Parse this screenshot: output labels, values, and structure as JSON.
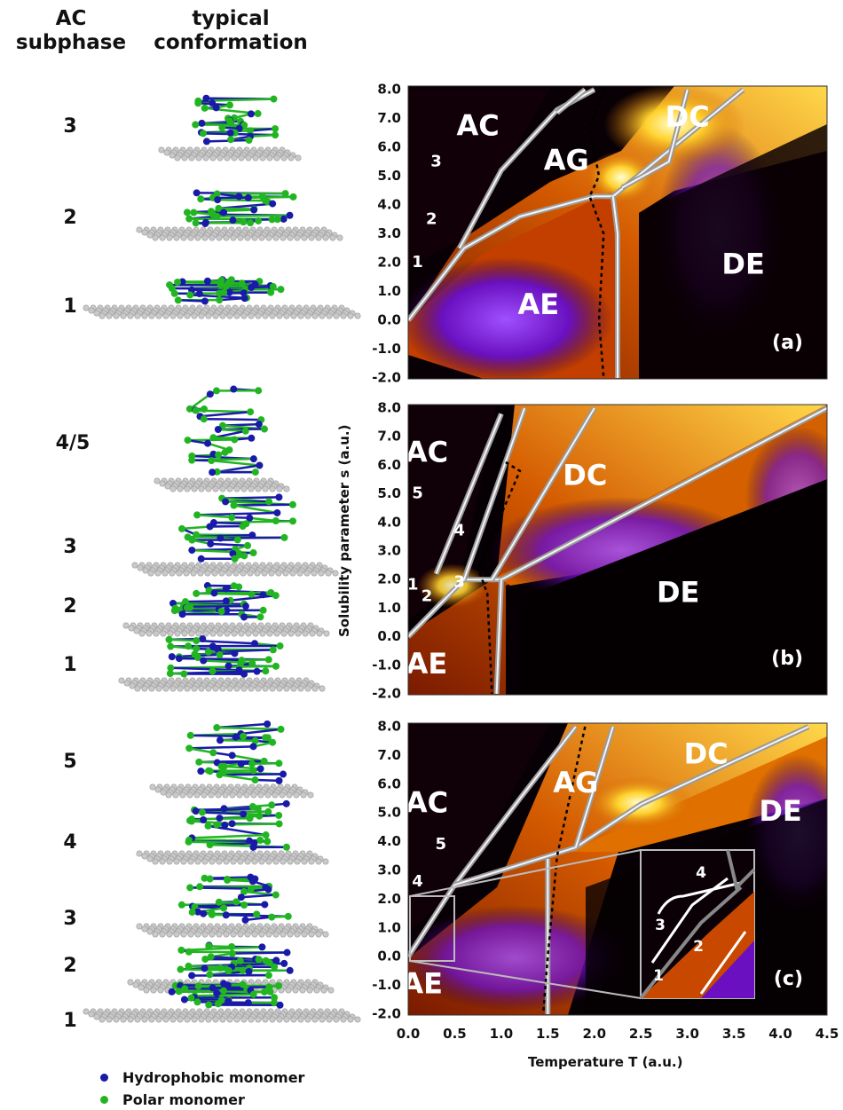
{
  "headers": {
    "left_title": [
      "AC",
      "subphase"
    ],
    "right_title": [
      "typical",
      "conformation"
    ]
  },
  "colors": {
    "hydrophobic": "#1a1aa8",
    "polar": "#22b522",
    "substrate": "#c9c9c9"
  },
  "panel_a": {
    "subphases": [
      "3",
      "2",
      "1"
    ]
  },
  "panel_b": {
    "subphases": [
      "4/5",
      "3",
      "2",
      "1"
    ]
  },
  "panel_c": {
    "subphases": [
      "5",
      "4",
      "3",
      "2",
      "1"
    ]
  },
  "legend": [
    {
      "label": "Hydrophobic monomer",
      "color": "#1a1aa8"
    },
    {
      "label": "Polar monomer",
      "color": "#22b522"
    }
  ],
  "chart_data": [
    {
      "type": "heatmap",
      "panel": "(a)",
      "xlim": [
        0.0,
        4.5
      ],
      "ylim": [
        -2.0,
        8.0
      ],
      "x_ticks": [
        "0.0",
        "0.5",
        "1.0",
        "1.5",
        "2.0",
        "2.5",
        "3.0",
        "3.5",
        "4.0",
        "4.5"
      ],
      "y_ticks": [
        "8.0",
        "7.0",
        "6.0",
        "5.0",
        "4.0",
        "3.0",
        "2.0",
        "1.0",
        "0.0",
        "-1.0",
        "-2.0"
      ],
      "regions": [
        {
          "label": "AC",
          "T": 0.75,
          "s": 6.7
        },
        {
          "label": "3",
          "T": 0.3,
          "s": 5.5
        },
        {
          "label": "2",
          "T": 0.25,
          "s": 3.5
        },
        {
          "label": "1",
          "T": 0.1,
          "s": 2.0
        },
        {
          "label": "AG",
          "T": 1.7,
          "s": 5.5
        },
        {
          "label": "DC",
          "T": 3.0,
          "s": 7.0
        },
        {
          "label": "DE",
          "T": 3.6,
          "s": 1.9
        },
        {
          "label": "AE",
          "T": 1.4,
          "s": 0.5
        }
      ],
      "boundaries": [
        [
          [
            0.0,
            0.0
          ],
          [
            0.6,
            2.5
          ],
          [
            1.2,
            3.6
          ],
          [
            2.0,
            4.3
          ],
          [
            2.2,
            4.3
          ],
          [
            3.6,
            8.0
          ]
        ],
        [
          [
            2.2,
            4.3
          ],
          [
            2.25,
            3.0
          ],
          [
            2.25,
            -2.0
          ]
        ],
        [
          [
            0.55,
            2.5
          ],
          [
            1.0,
            5.2
          ],
          [
            1.6,
            7.3
          ],
          [
            2.0,
            8.0
          ]
        ],
        [
          [
            1.6,
            7.2
          ],
          [
            1.9,
            8.0
          ]
        ],
        [
          [
            2.3,
            4.6
          ],
          [
            2.8,
            5.5
          ],
          [
            3.0,
            8.0
          ]
        ]
      ],
      "transition_line": [
        [
          2.1,
          8.0
        ],
        [
          1.95,
          6.7
        ],
        [
          2.05,
          5.0
        ],
        [
          1.95,
          4.3
        ],
        [
          2.1,
          3.0
        ],
        [
          2.05,
          0.0
        ],
        [
          2.1,
          -2.0
        ]
      ]
    },
    {
      "type": "heatmap",
      "panel": "(b)",
      "xlim": [
        0.0,
        4.5
      ],
      "ylim": [
        -2.0,
        8.0
      ],
      "x_ticks": [
        "0.0",
        "0.5",
        "1.0",
        "1.5",
        "2.0",
        "2.5",
        "3.0",
        "3.5",
        "4.0",
        "4.5"
      ],
      "y_ticks": [
        "8.0",
        "7.0",
        "6.0",
        "5.0",
        "4.0",
        "3.0",
        "2.0",
        "1.0",
        "0.0",
        "-1.0",
        "-2.0"
      ],
      "regions": [
        {
          "label": "AC",
          "T": 0.2,
          "s": 6.4
        },
        {
          "label": "5",
          "T": 0.1,
          "s": 5.0
        },
        {
          "label": "4",
          "T": 0.55,
          "s": 3.7
        },
        {
          "label": "1",
          "T": 0.05,
          "s": 1.8
        },
        {
          "label": "2",
          "T": 0.2,
          "s": 1.4
        },
        {
          "label": "3",
          "T": 0.55,
          "s": 1.9
        },
        {
          "label": "DC",
          "T": 1.9,
          "s": 5.6
        },
        {
          "label": "DE",
          "T": 2.9,
          "s": 1.5
        },
        {
          "label": "AE",
          "T": 0.2,
          "s": -1.0
        }
      ],
      "boundaries": [
        [
          [
            0.0,
            0.0
          ],
          [
            0.6,
            2.0
          ],
          [
            1.0,
            2.0
          ],
          [
            4.5,
            8.0
          ]
        ],
        [
          [
            1.0,
            2.0
          ],
          [
            0.95,
            -2.0
          ]
        ],
        [
          [
            0.6,
            2.0
          ],
          [
            1.25,
            8.0
          ]
        ],
        [
          [
            0.9,
            2.0
          ],
          [
            2.0,
            8.0
          ]
        ],
        [
          [
            0.3,
            2.2
          ],
          [
            1.0,
            7.8
          ]
        ]
      ],
      "transition_line": [
        [
          1.05,
          8.0
        ],
        [
          1.0,
          6.2
        ],
        [
          1.2,
          5.8
        ],
        [
          0.75,
          2.4
        ],
        [
          0.85,
          1.5
        ],
        [
          0.9,
          -2.0
        ]
      ]
    },
    {
      "type": "heatmap",
      "panel": "(c)",
      "xlim": [
        0.0,
        4.5
      ],
      "ylim": [
        -2.0,
        8.0
      ],
      "x_ticks": [
        "0.0",
        "0.5",
        "1.0",
        "1.5",
        "2.0",
        "2.5",
        "3.0",
        "3.5",
        "4.0",
        "4.5"
      ],
      "y_ticks": [
        "8.0",
        "7.0",
        "6.0",
        "5.0",
        "4.0",
        "3.0",
        "2.0",
        "1.0",
        "0.0",
        "-1.0",
        "-2.0"
      ],
      "regions": [
        {
          "label": "AC",
          "T": 0.2,
          "s": 5.3
        },
        {
          "label": "5",
          "T": 0.35,
          "s": 3.9
        },
        {
          "label": "4",
          "T": 0.1,
          "s": 2.6
        },
        {
          "label": "AG",
          "T": 1.8,
          "s": 6.0
        },
        {
          "label": "DC",
          "T": 3.2,
          "s": 7.0
        },
        {
          "label": "DE",
          "T": 4.0,
          "s": 5.0
        },
        {
          "label": "AE",
          "T": 0.15,
          "s": -1.0
        }
      ],
      "inset_labels": [
        "4",
        "3",
        "2",
        "1"
      ],
      "boundaries": [
        [
          [
            0.0,
            0.0
          ],
          [
            0.5,
            2.5
          ],
          [
            1.2,
            5.5
          ],
          [
            1.8,
            8.0
          ]
        ],
        [
          [
            0.5,
            2.5
          ],
          [
            1.8,
            3.8
          ],
          [
            2.5,
            5.3
          ],
          [
            4.3,
            8.0
          ]
        ],
        [
          [
            1.5,
            3.4
          ],
          [
            1.5,
            -2.0
          ]
        ],
        [
          [
            1.8,
            3.8
          ],
          [
            2.2,
            8.0
          ]
        ]
      ],
      "transition_line": [
        [
          1.9,
          8.0
        ],
        [
          1.6,
          3.5
        ],
        [
          1.5,
          0.0
        ],
        [
          1.45,
          -2.0
        ]
      ]
    }
  ],
  "axes": {
    "xlabel": "Temperature T (a.u.)",
    "ylabel": "Solubility parameter s (a.u.)"
  }
}
